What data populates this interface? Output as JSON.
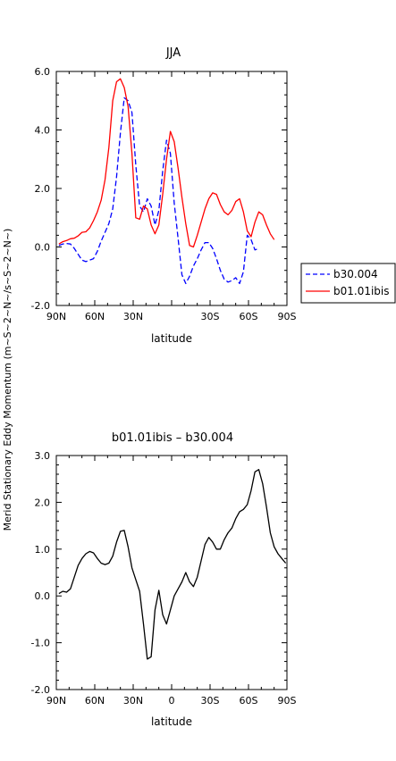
{
  "ylabel": "Merid Stationary Eddy Momentum (m~S~2~N~/s~S~2~N~)",
  "chart_data": [
    {
      "type": "line",
      "title": "JJA",
      "xlabel": "latitude",
      "ylabel": "",
      "xlim": [
        90,
        -90
      ],
      "ylim": [
        -2.0,
        6.0
      ],
      "x_ticks": [
        90,
        60,
        30,
        0,
        -30,
        -60,
        -90
      ],
      "x_tick_labels": [
        "90N",
        "60N",
        "30N",
        "",
        "30S",
        "60S",
        "90S"
      ],
      "y_ticks": [
        -2.0,
        0.0,
        2.0,
        4.0,
        6.0
      ],
      "y_tick_labels": [
        "-2.0",
        "0.0",
        "2.0",
        "4.0",
        "6.0"
      ],
      "legend": {
        "placement": "outside-right",
        "entries": [
          "b30.004",
          "b01.01ibis"
        ]
      },
      "series": [
        {
          "name": "b30.004",
          "color": "#0000ff",
          "dash": "dashed",
          "x": [
            88,
            85,
            82,
            79,
            76,
            73,
            70,
            67,
            64,
            61,
            58,
            55,
            52,
            49,
            46,
            43,
            40,
            37,
            34,
            31,
            28,
            25,
            22,
            19,
            16,
            13,
            10,
            7,
            4,
            1,
            -2,
            -5,
            -8,
            -11,
            -14,
            -17,
            -20,
            -23,
            -26,
            -29,
            -32,
            -35,
            -38,
            -41,
            -44,
            -47,
            -50,
            -53,
            -56,
            -59,
            -62,
            -65,
            -68,
            -71,
            -74,
            -77,
            -80,
            -83,
            -86,
            -89
          ],
          "y": [
            0.05,
            0.1,
            0.12,
            0.1,
            -0.05,
            -0.25,
            -0.45,
            -0.5,
            -0.45,
            -0.4,
            -0.15,
            0.2,
            0.5,
            0.8,
            1.3,
            2.4,
            3.9,
            5.1,
            5.0,
            4.6,
            2.8,
            1.4,
            1.2,
            1.65,
            1.4,
            0.75,
            1.25,
            2.6,
            3.65,
            3.2,
            1.5,
            0.3,
            -0.95,
            -1.25,
            -1.0,
            -0.65,
            -0.4,
            -0.1,
            0.15,
            0.15,
            -0.05,
            -0.4,
            -0.8,
            -1.1,
            -1.2,
            -1.15,
            -1.05,
            -1.25,
            -0.85,
            0.4,
            0.25,
            -0.1,
            -0.05,
            null,
            null,
            null,
            null,
            null,
            null,
            null
          ]
        },
        {
          "name": "b01.01ibis",
          "color": "#ff0000",
          "dash": "solid",
          "x": [
            88,
            85,
            82,
            79,
            76,
            73,
            70,
            67,
            64,
            61,
            58,
            55,
            52,
            49,
            46,
            43,
            40,
            37,
            34,
            31,
            28,
            25,
            22,
            19,
            16,
            13,
            10,
            7,
            4,
            1,
            -2,
            -5,
            -8,
            -11,
            -14,
            -17,
            -20,
            -23,
            -26,
            -29,
            -32,
            -35,
            -38,
            -41,
            -44,
            -47,
            -50,
            -53,
            -56,
            -59,
            -62,
            -65,
            -68,
            -71,
            -74,
            -77,
            -80,
            -83,
            -86,
            -89
          ],
          "y": [
            0.1,
            0.18,
            0.22,
            0.28,
            0.3,
            0.38,
            0.5,
            0.52,
            0.65,
            0.9,
            1.2,
            1.6,
            2.3,
            3.4,
            5.0,
            5.65,
            5.75,
            5.45,
            4.8,
            3.2,
            1.0,
            0.95,
            1.4,
            1.3,
            0.75,
            0.45,
            0.75,
            1.8,
            3.0,
            3.95,
            3.6,
            2.7,
            1.7,
            0.8,
            0.05,
            0.0,
            0.4,
            0.85,
            1.3,
            1.65,
            1.85,
            1.8,
            1.45,
            1.2,
            1.1,
            1.25,
            1.55,
            1.65,
            1.2,
            0.55,
            0.35,
            0.85,
            1.2,
            1.1,
            0.75,
            0.45,
            0.25,
            null,
            null,
            null
          ]
        }
      ]
    },
    {
      "type": "line",
      "title": "b01.01ibis – b30.004",
      "xlabel": "latitude",
      "ylabel": "",
      "xlim": [
        90,
        -90
      ],
      "ylim": [
        -2.0,
        3.0
      ],
      "x_ticks": [
        90,
        60,
        30,
        0,
        -30,
        -60,
        -90
      ],
      "x_tick_labels": [
        "90N",
        "60N",
        "30N",
        "0",
        "30S",
        "60S",
        "90S"
      ],
      "y_ticks": [
        -2.0,
        -1.0,
        0.0,
        1.0,
        2.0,
        3.0
      ],
      "y_tick_labels": [
        "-2.0",
        "-1.0",
        "0.0",
        "1.0",
        "2.0",
        "3.0"
      ],
      "series": [
        {
          "color": "#000000",
          "dash": "solid",
          "x": [
            88,
            85,
            82,
            79,
            76,
            73,
            70,
            67,
            64,
            61,
            58,
            55,
            52,
            49,
            46,
            43,
            40,
            37,
            34,
            31,
            28,
            25,
            22,
            19,
            16,
            13,
            10,
            7,
            4,
            1,
            -2,
            -5,
            -8,
            -11,
            -14,
            -17,
            -20,
            -23,
            -26,
            -29,
            -32,
            -35,
            -38,
            -41,
            -44,
            -47,
            -50,
            -53,
            -56,
            -59,
            -62,
            -65,
            -68,
            -71,
            -74,
            -77,
            -80,
            -83,
            -86,
            -89
          ],
          "y": [
            0.05,
            0.1,
            0.08,
            0.15,
            0.4,
            0.65,
            0.8,
            0.9,
            0.95,
            0.92,
            0.8,
            0.7,
            0.67,
            0.7,
            0.85,
            1.15,
            1.38,
            1.4,
            1.05,
            0.6,
            0.35,
            0.1,
            -0.6,
            -1.35,
            -1.3,
            -0.3,
            0.12,
            -0.4,
            -0.6,
            -0.3,
            0.0,
            0.15,
            0.3,
            0.5,
            0.3,
            0.2,
            0.4,
            0.75,
            1.1,
            1.25,
            1.15,
            1.0,
            1.0,
            1.2,
            1.35,
            1.45,
            1.65,
            1.8,
            1.85,
            1.95,
            2.25,
            2.65,
            2.7,
            2.4,
            1.9,
            1.35,
            1.05,
            0.9,
            0.8,
            0.7
          ]
        }
      ]
    }
  ]
}
